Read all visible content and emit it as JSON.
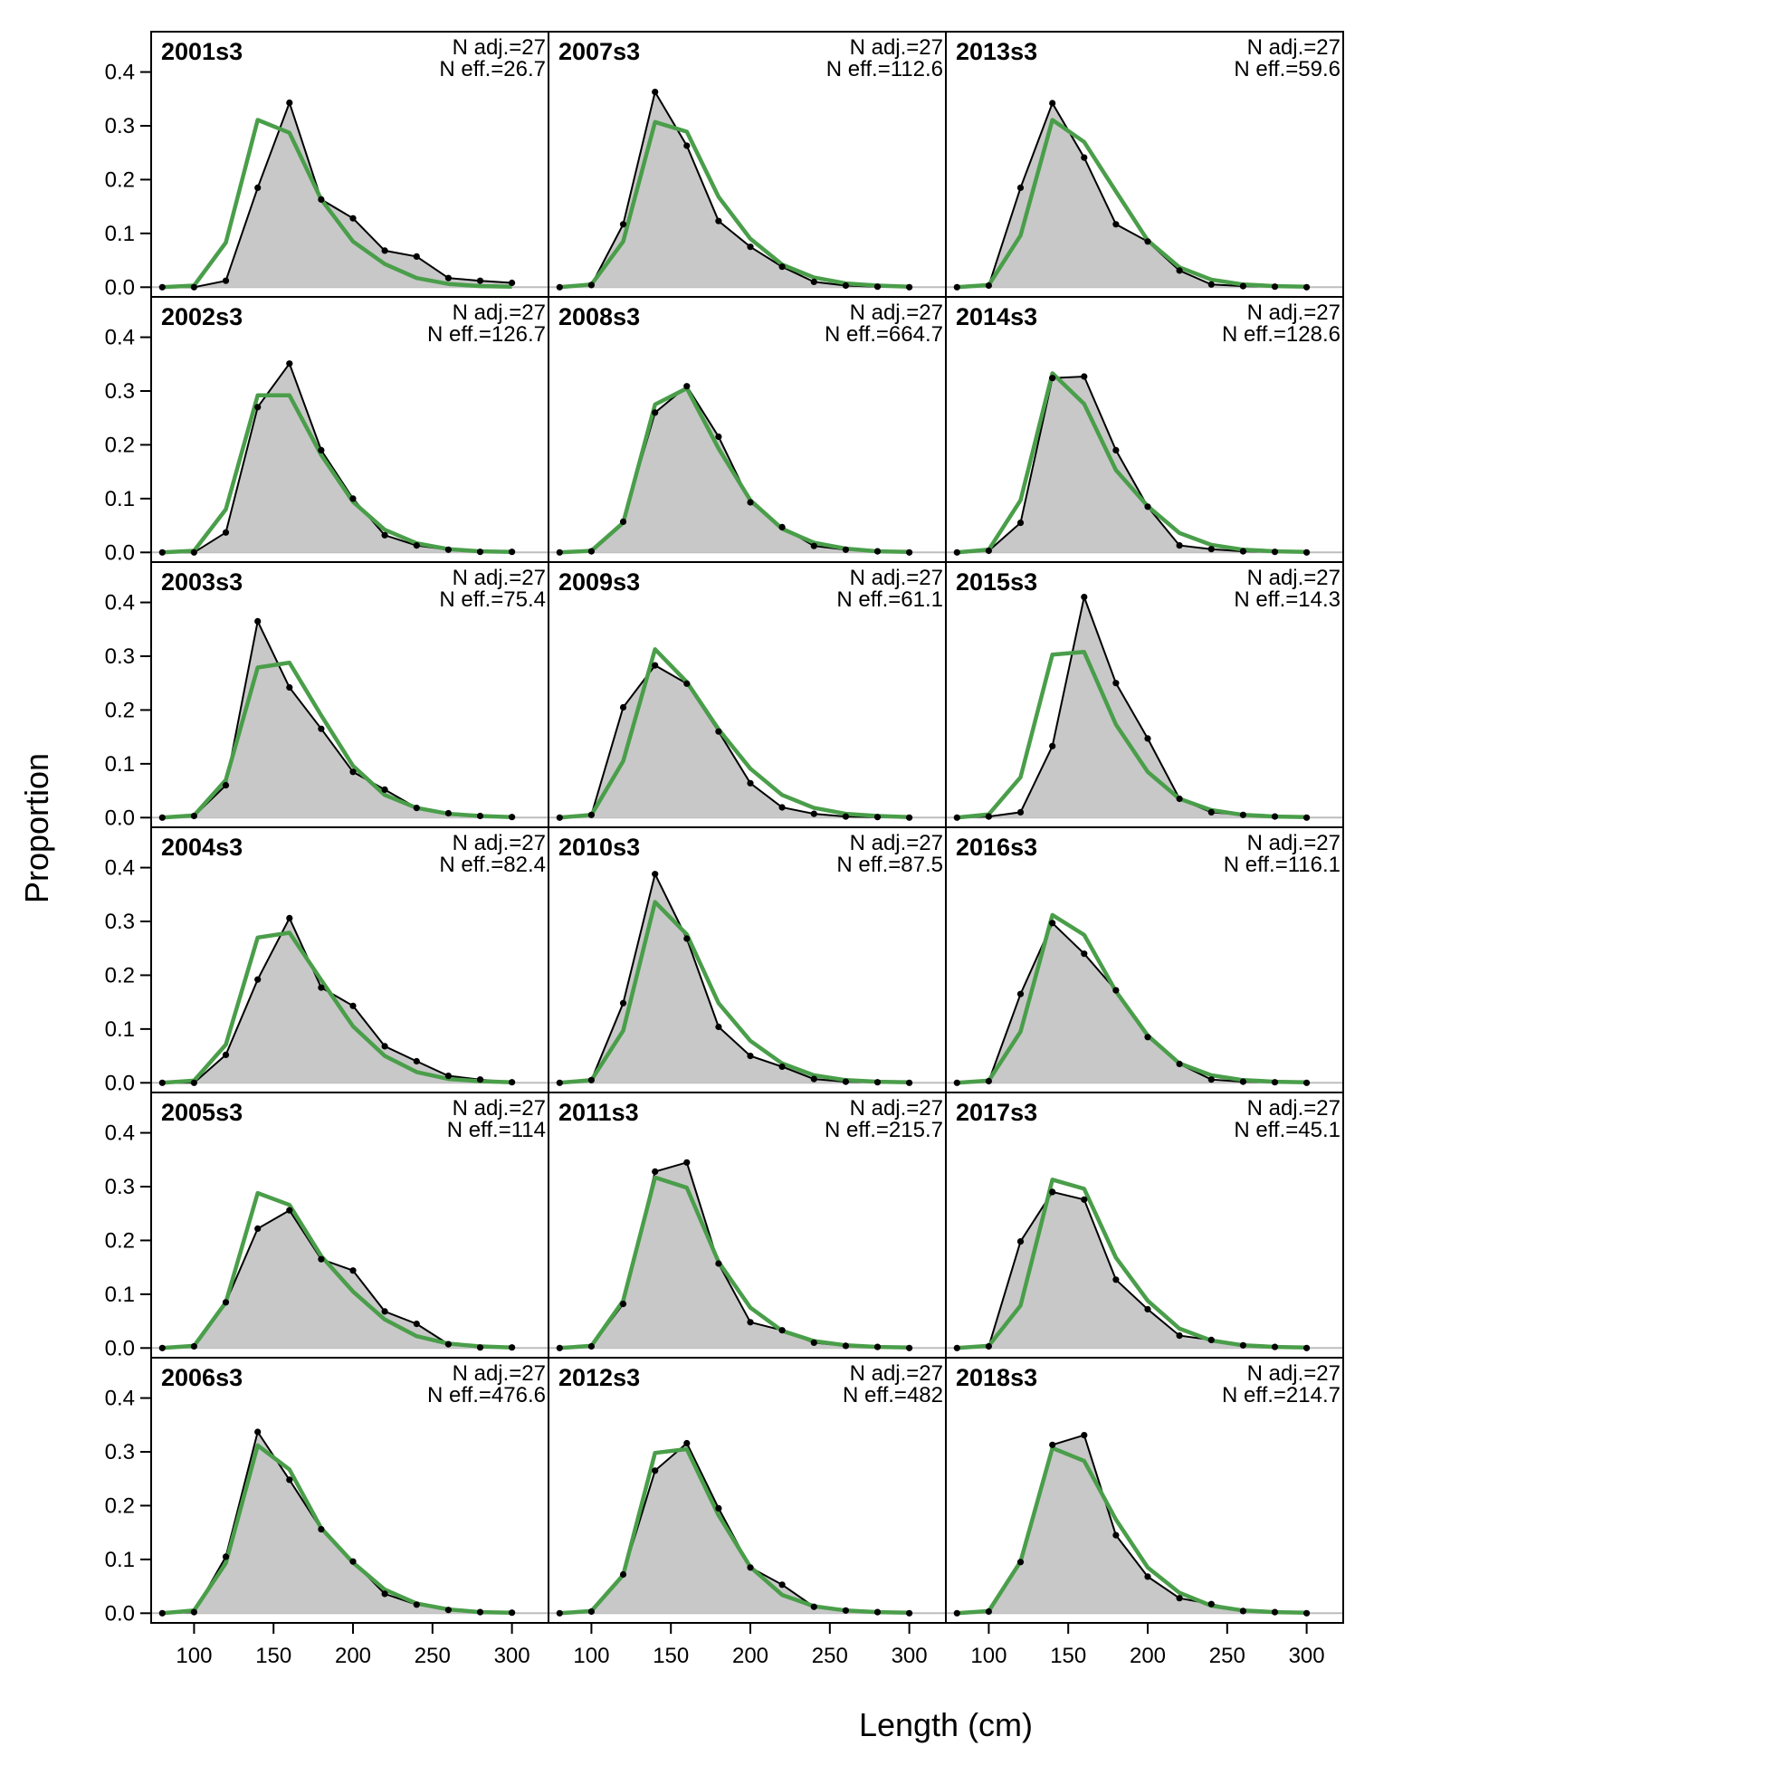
{
  "chart_data": {
    "type": "line",
    "xlabel": "Length (cm)",
    "ylabel": "Proportion",
    "xlim": [
      73,
      323
    ],
    "ylim": [
      -0.018,
      0.475
    ],
    "x_ticks": [
      100,
      150,
      200,
      250,
      300
    ],
    "y_ticks": [
      0.0,
      0.1,
      0.2,
      0.3,
      0.4
    ],
    "y_tick_labels": [
      "0.0",
      "0.1",
      "0.2",
      "0.3",
      "0.4"
    ],
    "x": [
      80,
      100,
      120,
      140,
      160,
      180,
      200,
      220,
      240,
      260,
      280,
      300
    ],
    "observed_style": {
      "fill": "#c8c8c8",
      "line": "#000000"
    },
    "expected_style": {
      "line": "#4a9e4a"
    },
    "panels": [
      {
        "label": "2001s3",
        "n_adj": "N adj.=27",
        "n_eff": "N eff.=26.7",
        "observed": [
          0,
          0,
          0.012,
          0.185,
          0.343,
          0.163,
          0.128,
          0.068,
          0.057,
          0.017,
          0.012,
          0.008
        ],
        "expected": [
          0,
          0.003,
          0.083,
          0.311,
          0.287,
          0.163,
          0.085,
          0.043,
          0.017,
          0.006,
          0.002,
          0.001
        ]
      },
      {
        "label": "2002s3",
        "n_adj": "N adj.=27",
        "n_eff": "N eff.=126.7",
        "observed": [
          0,
          0,
          0.037,
          0.27,
          0.351,
          0.19,
          0.1,
          0.032,
          0.013,
          0.005,
          0.001,
          0.001
        ],
        "expected": [
          0,
          0.003,
          0.08,
          0.292,
          0.292,
          0.181,
          0.094,
          0.042,
          0.017,
          0.006,
          0.002,
          0.001
        ]
      },
      {
        "label": "2003s3",
        "n_adj": "N adj.=27",
        "n_eff": "N eff.=75.4",
        "observed": [
          0,
          0.003,
          0.06,
          0.365,
          0.242,
          0.165,
          0.085,
          0.052,
          0.018,
          0.008,
          0.003,
          0.001
        ],
        "expected": [
          0,
          0.004,
          0.07,
          0.279,
          0.288,
          0.19,
          0.096,
          0.042,
          0.018,
          0.007,
          0.003,
          0.001
        ]
      },
      {
        "label": "2004s3",
        "n_adj": "N adj.=27",
        "n_eff": "N eff.=82.4",
        "observed": [
          0,
          0,
          0.052,
          0.192,
          0.306,
          0.177,
          0.143,
          0.068,
          0.04,
          0.013,
          0.006,
          0.001
        ],
        "expected": [
          0,
          0.004,
          0.071,
          0.27,
          0.279,
          0.191,
          0.105,
          0.05,
          0.02,
          0.007,
          0.003,
          0.001
        ]
      },
      {
        "label": "2005s3",
        "n_adj": "N adj.=27",
        "n_eff": "N eff.=114",
        "observed": [
          0,
          0.003,
          0.085,
          0.222,
          0.256,
          0.165,
          0.144,
          0.068,
          0.045,
          0.007,
          0.001,
          0.001
        ],
        "expected": [
          0,
          0.004,
          0.085,
          0.288,
          0.266,
          0.171,
          0.105,
          0.053,
          0.022,
          0.008,
          0.003,
          0.001
        ]
      },
      {
        "label": "2006s3",
        "n_adj": "N adj.=27",
        "n_eff": "N eff.=476.6",
        "observed": [
          0,
          0.002,
          0.105,
          0.337,
          0.248,
          0.156,
          0.096,
          0.036,
          0.016,
          0.006,
          0.002,
          0.001
        ],
        "expected": [
          0,
          0.005,
          0.093,
          0.312,
          0.267,
          0.158,
          0.094,
          0.044,
          0.018,
          0.007,
          0.002,
          0.001
        ]
      },
      {
        "label": "2007s3",
        "n_adj": "N adj.=27",
        "n_eff": "N eff.=112.6",
        "observed": [
          0,
          0.004,
          0.117,
          0.363,
          0.263,
          0.123,
          0.075,
          0.038,
          0.01,
          0.003,
          0.001,
          0
        ],
        "expected": [
          0,
          0.005,
          0.085,
          0.307,
          0.289,
          0.168,
          0.09,
          0.042,
          0.018,
          0.007,
          0.003,
          0.001
        ]
      },
      {
        "label": "2008s3",
        "n_adj": "N adj.=27",
        "n_eff": "N eff.=664.7",
        "observed": [
          0,
          0.002,
          0.057,
          0.26,
          0.309,
          0.215,
          0.093,
          0.047,
          0.012,
          0.005,
          0.002,
          0
        ],
        "expected": [
          0,
          0.003,
          0.055,
          0.275,
          0.305,
          0.193,
          0.097,
          0.044,
          0.018,
          0.007,
          0.002,
          0.001
        ]
      },
      {
        "label": "2009s3",
        "n_adj": "N adj.=27",
        "n_eff": "N eff.=61.1",
        "observed": [
          0,
          0.005,
          0.205,
          0.283,
          0.249,
          0.16,
          0.064,
          0.019,
          0.007,
          0.002,
          0.001,
          0
        ],
        "expected": [
          0,
          0.005,
          0.105,
          0.313,
          0.252,
          0.164,
          0.091,
          0.042,
          0.018,
          0.007,
          0.003,
          0.001
        ]
      },
      {
        "label": "2010s3",
        "n_adj": "N adj.=27",
        "n_eff": "N eff.=87.5",
        "observed": [
          0,
          0.005,
          0.148,
          0.388,
          0.268,
          0.104,
          0.05,
          0.03,
          0.007,
          0.002,
          0.001,
          0
        ],
        "expected": [
          0,
          0.005,
          0.097,
          0.336,
          0.276,
          0.148,
          0.078,
          0.036,
          0.014,
          0.005,
          0.002,
          0.001
        ]
      },
      {
        "label": "2011s3",
        "n_adj": "N adj.=27",
        "n_eff": "N eff.=215.7",
        "observed": [
          0,
          0.003,
          0.082,
          0.328,
          0.345,
          0.157,
          0.048,
          0.033,
          0.01,
          0.004,
          0.002,
          0
        ],
        "expected": [
          0,
          0.004,
          0.088,
          0.317,
          0.298,
          0.16,
          0.075,
          0.032,
          0.013,
          0.005,
          0.002,
          0.001
        ]
      },
      {
        "label": "2012s3",
        "n_adj": "N adj.=27",
        "n_eff": "N eff.=482",
        "observed": [
          0,
          0.003,
          0.072,
          0.265,
          0.316,
          0.195,
          0.085,
          0.053,
          0.012,
          0.005,
          0.002,
          0
        ],
        "expected": [
          0,
          0.004,
          0.071,
          0.298,
          0.305,
          0.182,
          0.086,
          0.034,
          0.013,
          0.005,
          0.002,
          0.001
        ]
      },
      {
        "label": "2013s3",
        "n_adj": "N adj.=27",
        "n_eff": "N eff.=59.6",
        "observed": [
          0,
          0.003,
          0.185,
          0.342,
          0.241,
          0.117,
          0.085,
          0.031,
          0.005,
          0.002,
          0.001,
          0
        ],
        "expected": [
          0,
          0.004,
          0.096,
          0.311,
          0.27,
          0.178,
          0.087,
          0.037,
          0.014,
          0.005,
          0.002,
          0.001
        ]
      },
      {
        "label": "2014s3",
        "n_adj": "N adj.=27",
        "n_eff": "N eff.=128.6",
        "observed": [
          0,
          0.003,
          0.055,
          0.324,
          0.327,
          0.19,
          0.085,
          0.013,
          0.006,
          0.002,
          0.001,
          0
        ],
        "expected": [
          0,
          0.005,
          0.097,
          0.333,
          0.276,
          0.153,
          0.086,
          0.036,
          0.014,
          0.005,
          0.002,
          0.001
        ]
      },
      {
        "label": "2015s3",
        "n_adj": "N adj.=27",
        "n_eff": "N eff.=14.3",
        "observed": [
          0,
          0.002,
          0.01,
          0.133,
          0.41,
          0.25,
          0.147,
          0.035,
          0.01,
          0.005,
          0.002,
          0
        ],
        "expected": [
          0,
          0.006,
          0.075,
          0.303,
          0.308,
          0.173,
          0.085,
          0.035,
          0.014,
          0.005,
          0.002,
          0.001
        ]
      },
      {
        "label": "2016s3",
        "n_adj": "N adj.=27",
        "n_eff": "N eff.=116.1",
        "observed": [
          0,
          0.003,
          0.165,
          0.297,
          0.24,
          0.172,
          0.085,
          0.035,
          0.006,
          0.002,
          0.001,
          0
        ],
        "expected": [
          0,
          0.004,
          0.095,
          0.312,
          0.275,
          0.17,
          0.088,
          0.036,
          0.014,
          0.005,
          0.002,
          0.001
        ]
      },
      {
        "label": "2017s3",
        "n_adj": "N adj.=27",
        "n_eff": "N eff.=45.1",
        "observed": [
          0,
          0.003,
          0.198,
          0.29,
          0.276,
          0.127,
          0.072,
          0.023,
          0.015,
          0.005,
          0.002,
          0
        ],
        "expected": [
          0,
          0.004,
          0.079,
          0.313,
          0.296,
          0.168,
          0.088,
          0.036,
          0.014,
          0.005,
          0.002,
          0.001
        ]
      },
      {
        "label": "2018s3",
        "n_adj": "N adj.=27",
        "n_eff": "N eff.=214.7",
        "observed": [
          0,
          0.003,
          0.095,
          0.313,
          0.331,
          0.145,
          0.068,
          0.028,
          0.017,
          0.004,
          0.002,
          0
        ],
        "expected": [
          0,
          0.004,
          0.096,
          0.307,
          0.283,
          0.174,
          0.085,
          0.038,
          0.014,
          0.005,
          0.002,
          0.001
        ]
      }
    ]
  }
}
